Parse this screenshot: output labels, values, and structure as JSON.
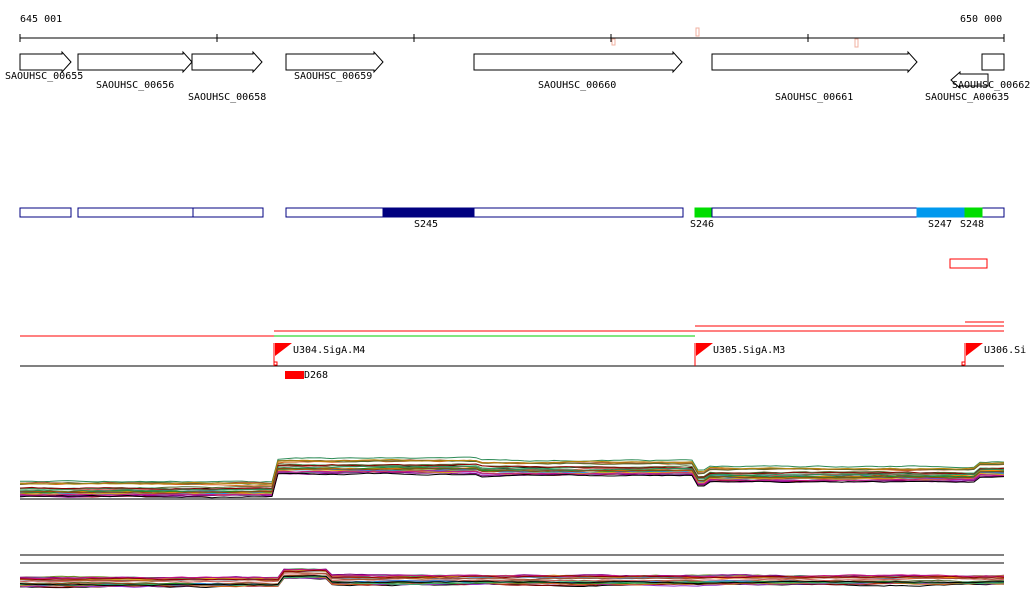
{
  "ruler": {
    "start_label": "645 001",
    "end_label": "650 000"
  },
  "genes": [
    {
      "id": "g1",
      "label": "SAOUHSC_00655",
      "strand": "+"
    },
    {
      "id": "g2",
      "label": "SAOUHSC_00656",
      "strand": "+"
    },
    {
      "id": "g3",
      "label": "SAOUHSC_00658",
      "strand": "+"
    },
    {
      "id": "g4",
      "label": "SAOUHSC_00659",
      "strand": "+"
    },
    {
      "id": "g5",
      "label": "SAOUHSC_00660",
      "strand": "+"
    },
    {
      "id": "g6",
      "label": "SAOUHSC_00661",
      "strand": "+"
    },
    {
      "id": "g7",
      "label": "SAOUHSC_00662",
      "strand": "+"
    },
    {
      "id": "g8",
      "label": "SAOUHSC_A00635",
      "strand": "-"
    }
  ],
  "segments": [
    {
      "label": "S245",
      "color": "#000080"
    },
    {
      "label": "S246",
      "color": "#00dd00"
    },
    {
      "label": "S247",
      "color": "#0099ee"
    },
    {
      "label": "S248",
      "color": "#00dd00"
    }
  ],
  "promoters": [
    {
      "label": "U304.SigA.M4"
    },
    {
      "label": "U305.SigA.M3"
    },
    {
      "label": "U306.Si"
    }
  ],
  "terminators": [
    {
      "label": "D268"
    }
  ],
  "colors": {
    "outline_blue": "#000080",
    "promoter_red": "#ff0000",
    "transcript_green": "#00cc00"
  }
}
